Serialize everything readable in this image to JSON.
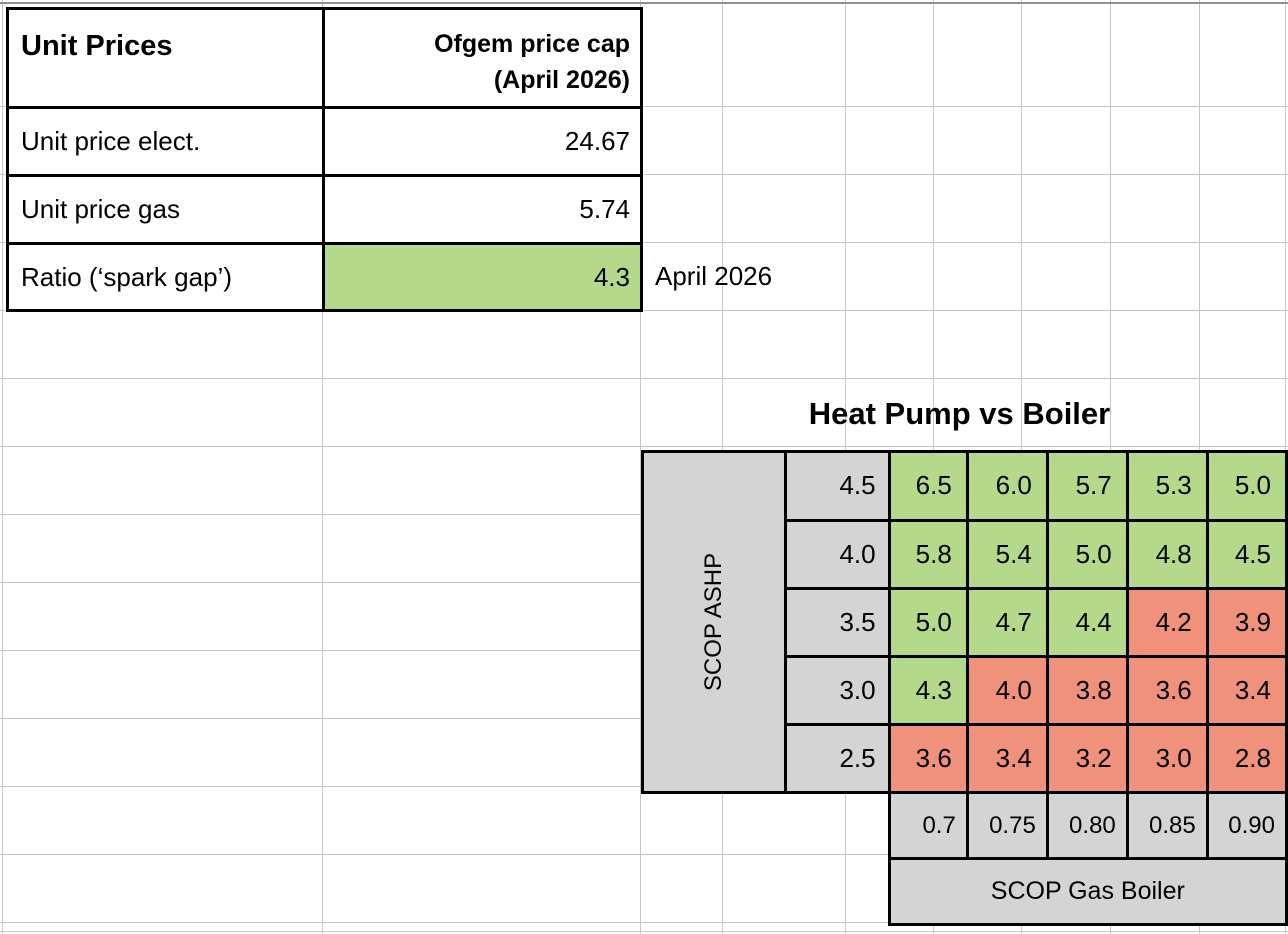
{
  "colors": {
    "green": "#b5d98b",
    "red": "#f0917c",
    "gray": "#d4d4d4"
  },
  "unit_prices_table": {
    "title": "Unit Prices",
    "column_header": "Ofgem price cap\n(April 2026)",
    "rows": [
      {
        "label": "Unit price elect.",
        "value": "24.67",
        "highlight": ""
      },
      {
        "label": "Unit price gas",
        "value": "5.74",
        "highlight": ""
      },
      {
        "label": "Ratio (‘spark gap’)",
        "value": "4.3",
        "highlight": "green"
      }
    ],
    "note": "April 2026"
  },
  "matrix": {
    "title": "Heat Pump vs Boiler",
    "y_axis_label": "SCOP ASHP",
    "x_axis_label": "SCOP Gas Boiler",
    "row_labels": [
      "4.5",
      "4.0",
      "3.5",
      "3.0",
      "2.5"
    ],
    "col_labels": [
      "0.7",
      "0.75",
      "0.80",
      "0.85",
      "0.90"
    ],
    "values": [
      [
        "6.5",
        "6.0",
        "5.7",
        "5.3",
        "5.0"
      ],
      [
        "5.8",
        "5.4",
        "5.0",
        "4.8",
        "4.5"
      ],
      [
        "5.0",
        "4.7",
        "4.4",
        "4.2",
        "3.9"
      ],
      [
        "4.3",
        "4.0",
        "3.8",
        "3.6",
        "3.4"
      ],
      [
        "3.6",
        "3.4",
        "3.2",
        "3.0",
        "2.8"
      ]
    ],
    "cell_colors": [
      [
        "green",
        "green",
        "green",
        "green",
        "green"
      ],
      [
        "green",
        "green",
        "green",
        "green",
        "green"
      ],
      [
        "green",
        "green",
        "green",
        "red",
        "red"
      ],
      [
        "green",
        "red",
        "red",
        "red",
        "red"
      ],
      [
        "red",
        "red",
        "red",
        "red",
        "red"
      ]
    ]
  }
}
